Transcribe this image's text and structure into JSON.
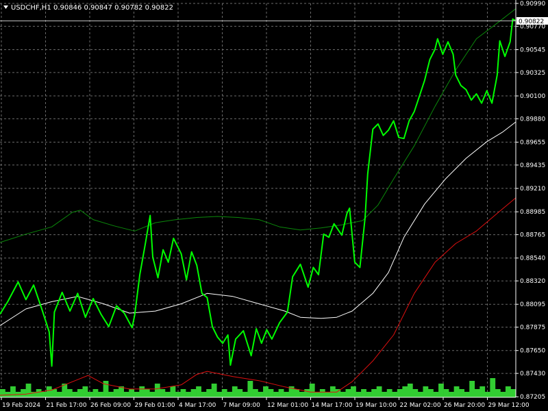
{
  "header": {
    "symbol": "USDCHF,H1",
    "ohlc": "0.90846 0.90847 0.90782 0.90822"
  },
  "current_price_label": "0.90822",
  "colors": {
    "background": "#000000",
    "frame": "#ffffff",
    "grid": "#6b6b6b",
    "price": "#00ff00",
    "ma_fast": "#0b8a0b",
    "ma_mid": "#ffffff",
    "ma_slow": "#e01010",
    "volume": "#32cd32",
    "price_tag_bg": "#ffffff"
  },
  "chart_data": {
    "type": "line",
    "symbol": "USDCHF",
    "timeframe": "H1",
    "grid": true,
    "y_range": [
      0.872,
      0.9099
    ],
    "y_ticks": [
      "0.90990",
      "0.90770",
      "0.90545",
      "0.90325",
      "0.90100",
      "0.89880",
      "0.89655",
      "0.89435",
      "0.89210",
      "0.88985",
      "0.88765",
      "0.88540",
      "0.88320",
      "0.88095",
      "0.87875",
      "0.87650",
      "0.87430",
      "0.87205"
    ],
    "x_ticks": [
      "19 Feb 2024",
      "21 Feb 17:00",
      "26 Feb 09:00",
      "29 Feb 01:00",
      "4 Mar 17:00",
      "7 Mar 09:00",
      "12 Mar 01:00",
      "14 Mar 17:00",
      "19 Mar 10:00",
      "22 Mar 02:00",
      "26 Mar 20:00",
      "29 Mar 12:00"
    ],
    "last_close": 0.90822,
    "series": [
      {
        "type": "price_close",
        "points": [
          [
            0,
            0.88
          ],
          [
            1.5,
            0.8812
          ],
          [
            3.5,
            0.8831
          ],
          [
            5,
            0.8814
          ],
          [
            6.5,
            0.8828
          ],
          [
            8,
            0.8806
          ],
          [
            9.5,
            0.8783
          ],
          [
            10,
            0.875
          ],
          [
            10.5,
            0.8802
          ],
          [
            12,
            0.8821
          ],
          [
            13.5,
            0.8803
          ],
          [
            15,
            0.882
          ],
          [
            16.5,
            0.8797
          ],
          [
            18,
            0.8815
          ],
          [
            19.5,
            0.88
          ],
          [
            21,
            0.8788
          ],
          [
            22.5,
            0.8808
          ],
          [
            24,
            0.8801
          ],
          [
            25.5,
            0.8787
          ],
          [
            26,
            0.8799
          ],
          [
            27,
            0.8838
          ],
          [
            28,
            0.8866
          ],
          [
            29,
            0.8895
          ],
          [
            29.5,
            0.8855
          ],
          [
            30.5,
            0.8835
          ],
          [
            31.5,
            0.8862
          ],
          [
            32.5,
            0.885
          ],
          [
            33.5,
            0.8873
          ],
          [
            35,
            0.8858
          ],
          [
            36,
            0.8833
          ],
          [
            37,
            0.886
          ],
          [
            38,
            0.8847
          ],
          [
            39,
            0.882
          ],
          [
            40,
            0.8816
          ],
          [
            41,
            0.8788
          ],
          [
            42,
            0.8778
          ],
          [
            43,
            0.8772
          ],
          [
            44,
            0.878
          ],
          [
            44.5,
            0.8751
          ],
          [
            45.5,
            0.8776
          ],
          [
            47,
            0.8784
          ],
          [
            48.5,
            0.876
          ],
          [
            49.5,
            0.8786
          ],
          [
            50.5,
            0.8772
          ],
          [
            51.5,
            0.8785
          ],
          [
            52.5,
            0.8776
          ],
          [
            54,
            0.8792
          ],
          [
            55.5,
            0.8802
          ],
          [
            56.5,
            0.8836
          ],
          [
            58,
            0.8848
          ],
          [
            59.5,
            0.8826
          ],
          [
            60.5,
            0.8845
          ],
          [
            61.5,
            0.8838
          ],
          [
            62.5,
            0.8877
          ],
          [
            63.5,
            0.8874
          ],
          [
            64.5,
            0.8887
          ],
          [
            66,
            0.8876
          ],
          [
            67,
            0.8897
          ],
          [
            67.5,
            0.8902
          ],
          [
            68.5,
            0.885
          ],
          [
            69.5,
            0.8845
          ],
          [
            70.5,
            0.8893
          ],
          [
            71,
            0.8935
          ],
          [
            72,
            0.8978
          ],
          [
            73,
            0.8983
          ],
          [
            74,
            0.8972
          ],
          [
            75,
            0.8977
          ],
          [
            76,
            0.8986
          ],
          [
            77,
            0.897
          ],
          [
            78,
            0.8969
          ],
          [
            79,
            0.8986
          ],
          [
            80,
            0.8995
          ],
          [
            81,
            0.901
          ],
          [
            82,
            0.9025
          ],
          [
            83,
            0.9045
          ],
          [
            84,
            0.9055
          ],
          [
            84.5,
            0.9065
          ],
          [
            85.5,
            0.905
          ],
          [
            86.5,
            0.9062
          ],
          [
            87.5,
            0.905
          ],
          [
            88,
            0.903
          ],
          [
            89,
            0.902
          ],
          [
            90,
            0.9016
          ],
          [
            91,
            0.9006
          ],
          [
            92,
            0.9012
          ],
          [
            93,
            0.9003
          ],
          [
            94,
            0.9015
          ],
          [
            95,
            0.9003
          ],
          [
            96,
            0.903
          ],
          [
            96.5,
            0.9063
          ],
          [
            97.5,
            0.9048
          ],
          [
            98.5,
            0.9062
          ],
          [
            99,
            0.9084
          ],
          [
            99.6,
            0.90822
          ]
        ]
      },
      {
        "type": "moving_average_fast",
        "points": [
          [
            0,
            0.8869
          ],
          [
            5,
            0.8877
          ],
          [
            10,
            0.8884
          ],
          [
            14,
            0.8898
          ],
          [
            15.5,
            0.89
          ],
          [
            18,
            0.8891
          ],
          [
            22,
            0.8885
          ],
          [
            26,
            0.888
          ],
          [
            30,
            0.8888
          ],
          [
            34,
            0.8891
          ],
          [
            38,
            0.8893
          ],
          [
            42,
            0.8894
          ],
          [
            46,
            0.8893
          ],
          [
            50,
            0.8891
          ],
          [
            54,
            0.8884
          ],
          [
            58,
            0.8881
          ],
          [
            62,
            0.8883
          ],
          [
            66,
            0.8886
          ],
          [
            70,
            0.889
          ],
          [
            73,
            0.8905
          ],
          [
            76,
            0.893
          ],
          [
            80,
            0.8962
          ],
          [
            84,
            0.9
          ],
          [
            88,
            0.9035
          ],
          [
            92,
            0.9065
          ],
          [
            96,
            0.908
          ],
          [
            99.6,
            0.9094
          ]
        ]
      },
      {
        "type": "moving_average_mid",
        "points": [
          [
            0,
            0.8789
          ],
          [
            5,
            0.8805
          ],
          [
            10,
            0.8812
          ],
          [
            15,
            0.8817
          ],
          [
            20,
            0.881
          ],
          [
            25,
            0.8801
          ],
          [
            30,
            0.8803
          ],
          [
            35,
            0.881
          ],
          [
            40,
            0.882
          ],
          [
            45,
            0.8817
          ],
          [
            50,
            0.881
          ],
          [
            55,
            0.8803
          ],
          [
            58,
            0.8797
          ],
          [
            62,
            0.8796
          ],
          [
            65,
            0.8797
          ],
          [
            68,
            0.8803
          ],
          [
            72,
            0.882
          ],
          [
            75,
            0.884
          ],
          [
            78,
            0.8874
          ],
          [
            82,
            0.8906
          ],
          [
            86,
            0.893
          ],
          [
            90,
            0.895
          ],
          [
            94,
            0.8966
          ],
          [
            97,
            0.8975
          ],
          [
            99.6,
            0.8985
          ]
        ]
      },
      {
        "type": "moving_average_slow",
        "points": [
          [
            0,
            0.8722
          ],
          [
            5,
            0.8723
          ],
          [
            10,
            0.8727
          ],
          [
            15,
            0.8737
          ],
          [
            17,
            0.8741
          ],
          [
            20,
            0.8733
          ],
          [
            25,
            0.8728
          ],
          [
            30,
            0.8728
          ],
          [
            35,
            0.8732
          ],
          [
            38,
            0.8742
          ],
          [
            40,
            0.8745
          ],
          [
            45,
            0.874
          ],
          [
            50,
            0.8736
          ],
          [
            55,
            0.873
          ],
          [
            60,
            0.8725
          ],
          [
            65,
            0.8725
          ],
          [
            68,
            0.8735
          ],
          [
            72,
            0.8755
          ],
          [
            76,
            0.878
          ],
          [
            80,
            0.882
          ],
          [
            84,
            0.885
          ],
          [
            88,
            0.8868
          ],
          [
            92,
            0.888
          ],
          [
            96,
            0.8897
          ],
          [
            99.6,
            0.8912
          ]
        ]
      }
    ],
    "volume": [
      3,
      2,
      4,
      2,
      3,
      5,
      2,
      3,
      2,
      4,
      3,
      2,
      5,
      3,
      2,
      3,
      4,
      2,
      3,
      2,
      6,
      2,
      3,
      4,
      2,
      3,
      2,
      4,
      3,
      2,
      5,
      3,
      2,
      4,
      2,
      3,
      2,
      3,
      4,
      2,
      3,
      5,
      2,
      3,
      2,
      4,
      3,
      2,
      6,
      3,
      2,
      4,
      3,
      2,
      3,
      2,
      4,
      3,
      2,
      3,
      5,
      2,
      3,
      2,
      4,
      3,
      2,
      3,
      4,
      2,
      3,
      2,
      3,
      4,
      2,
      3,
      2,
      3,
      4,
      5,
      3,
      2,
      4,
      3,
      2,
      5,
      3,
      2,
      4,
      3,
      2,
      6,
      3,
      4,
      2,
      7,
      3,
      2,
      4,
      3
    ]
  }
}
